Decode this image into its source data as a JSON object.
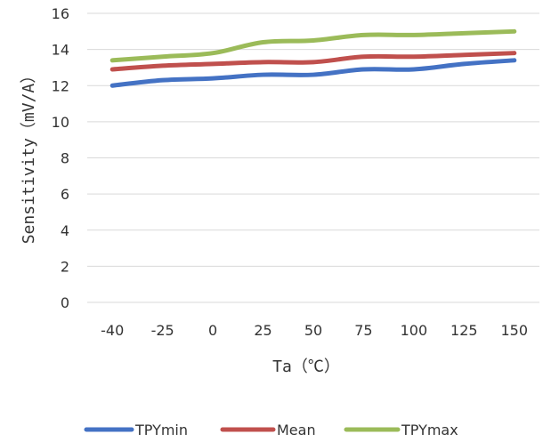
{
  "chart_data": {
    "type": "line",
    "title": "",
    "xlabel": "Ta（℃）",
    "ylabel": "Sensitivity（mV/A）",
    "categories": [
      "-40",
      "-25",
      "0",
      "25",
      "50",
      "75",
      "100",
      "125",
      "150"
    ],
    "ylim": [
      0,
      16
    ],
    "yticks": [
      0,
      2,
      4,
      6,
      8,
      10,
      12,
      14,
      16
    ],
    "grid": "horizontal",
    "legend": "bottom",
    "series": [
      {
        "name": "TPYmin",
        "color": "#4472C4",
        "values": [
          12.0,
          12.3,
          12.4,
          12.6,
          12.6,
          12.9,
          12.9,
          13.2,
          13.4
        ]
      },
      {
        "name": "Mean",
        "color": "#C0504D",
        "values": [
          12.9,
          13.1,
          13.2,
          13.3,
          13.3,
          13.6,
          13.6,
          13.7,
          13.8
        ]
      },
      {
        "name": "TPYmax",
        "color": "#9BBB59",
        "values": [
          13.4,
          13.6,
          13.8,
          14.4,
          14.5,
          14.8,
          14.8,
          14.9,
          15.0
        ]
      }
    ]
  }
}
